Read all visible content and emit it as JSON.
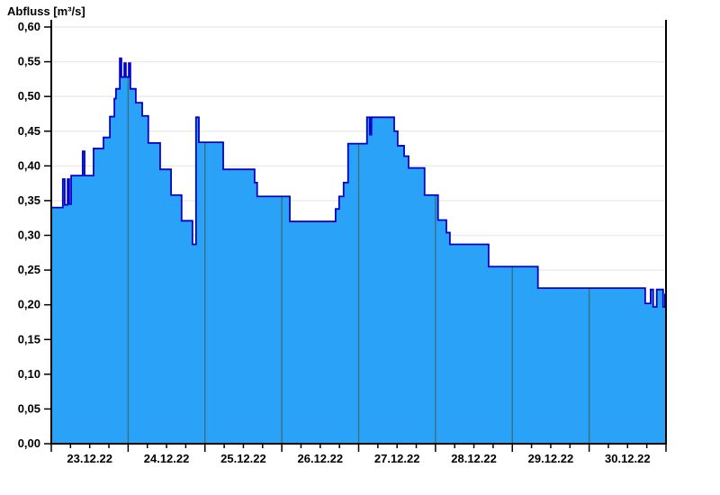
{
  "chart_data": {
    "type": "area",
    "subtype": "step-hydrograph",
    "title": "Abfluss [m³/s]",
    "y_axis": {
      "min": 0.0,
      "max": 0.6,
      "axis_top_value": 0.61,
      "tick_step": 0.05,
      "tick_labels": [
        "0,00",
        "0,05",
        "0,10",
        "0,15",
        "0,20",
        "0,25",
        "0,30",
        "0,35",
        "0,40",
        "0,45",
        "0,50",
        "0,55",
        "0,60"
      ],
      "grid": true
    },
    "x_axis": {
      "span_hours": 192,
      "start_label": "23.12.22",
      "end_boundary": "31.12.22",
      "day_labels": [
        "23.12.22",
        "24.12.22",
        "25.12.22",
        "26.12.22",
        "27.12.22",
        "28.12.22",
        "29.12.22",
        "30.12.22"
      ],
      "major_tick_hours": 24,
      "minor_tick_hours": 6,
      "day_separator_lines": true
    },
    "series": [
      {
        "name": "Abfluss",
        "unit": "m³/s",
        "points_t_hours_value": [
          [
            0.0,
            0.34
          ],
          [
            3.6,
            0.381
          ],
          [
            4.2,
            0.344
          ],
          [
            5.1,
            0.381
          ],
          [
            5.6,
            0.345
          ],
          [
            6.2,
            0.386
          ],
          [
            9.8,
            0.421
          ],
          [
            10.4,
            0.386
          ],
          [
            13.2,
            0.425
          ],
          [
            16.3,
            0.441
          ],
          [
            18.3,
            0.471
          ],
          [
            19.7,
            0.497
          ],
          [
            20.2,
            0.511
          ],
          [
            21.4,
            0.555
          ],
          [
            21.9,
            0.528
          ],
          [
            22.8,
            0.548
          ],
          [
            23.3,
            0.528
          ],
          [
            24.2,
            0.548
          ],
          [
            24.7,
            0.511
          ],
          [
            26.4,
            0.491
          ],
          [
            28.4,
            0.472
          ],
          [
            30.3,
            0.433
          ],
          [
            34.0,
            0.395
          ],
          [
            37.4,
            0.358
          ],
          [
            40.7,
            0.321
          ],
          [
            44.1,
            0.287
          ],
          [
            45.2,
            0.47
          ],
          [
            46.1,
            0.434
          ],
          [
            53.7,
            0.395
          ],
          [
            63.5,
            0.376
          ],
          [
            64.3,
            0.356
          ],
          [
            74.5,
            0.32
          ],
          [
            88.8,
            0.338
          ],
          [
            89.9,
            0.356
          ],
          [
            91.3,
            0.376
          ],
          [
            92.7,
            0.432
          ],
          [
            98.6,
            0.47
          ],
          [
            99.5,
            0.445
          ],
          [
            100.0,
            0.47
          ],
          [
            107.1,
            0.45
          ],
          [
            108.2,
            0.429
          ],
          [
            110.2,
            0.414
          ],
          [
            111.6,
            0.397
          ],
          [
            116.6,
            0.358
          ],
          [
            120.8,
            0.322
          ],
          [
            123.4,
            0.304
          ],
          [
            124.5,
            0.287
          ],
          [
            136.6,
            0.255
          ],
          [
            152.0,
            0.224
          ],
          [
            185.5,
            0.202
          ],
          [
            187.2,
            0.222
          ],
          [
            188.0,
            0.197
          ],
          [
            189.1,
            0.222
          ],
          [
            191.1,
            0.197
          ],
          [
            191.7,
            0.215
          ]
        ]
      }
    ],
    "colors": {
      "fill": "#29a2f8",
      "outline": "#0000cc",
      "h_grid": "#ececec",
      "day_line": "#38707c",
      "axis": "#000000",
      "background": "#ffffff"
    }
  }
}
